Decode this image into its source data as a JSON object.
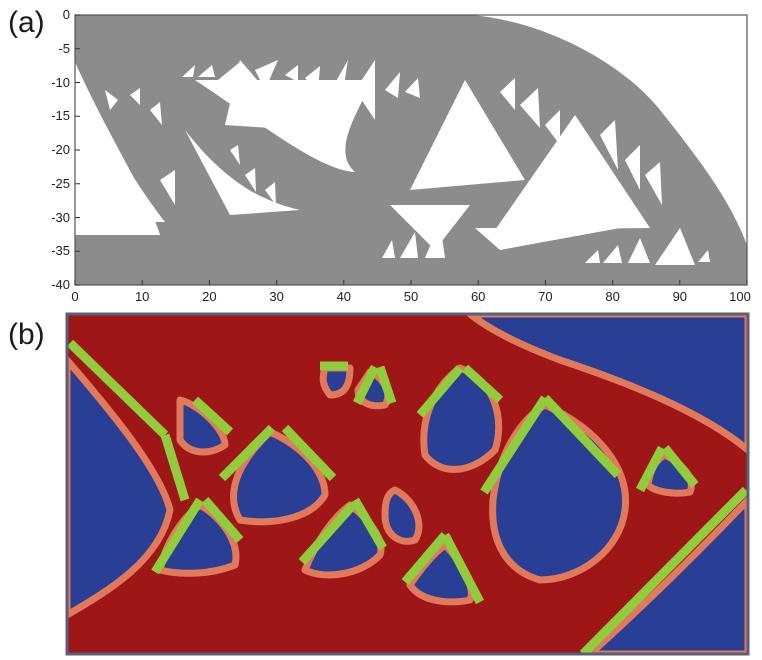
{
  "panel_a": {
    "label": "(a)",
    "x_ticks": [
      "0",
      "10",
      "20",
      "30",
      "40",
      "50",
      "60",
      "70",
      "80",
      "90",
      "100"
    ],
    "y_ticks": [
      "0",
      "-5",
      "-10",
      "-15",
      "-20",
      "-25",
      "-30",
      "-35",
      "-40"
    ],
    "x_range": [
      0,
      100
    ],
    "y_range": [
      -40,
      0
    ],
    "colors": {
      "material": "#8c8c8c",
      "void": "#ffffff",
      "frame": "#555555"
    }
  },
  "panel_b": {
    "label": "(b)",
    "colors": {
      "solid": "#9e1616",
      "void": "#283f95",
      "boundary": "#e07a5a",
      "lines": "#8fce3a",
      "frame": "#5a5f7a"
    }
  }
}
